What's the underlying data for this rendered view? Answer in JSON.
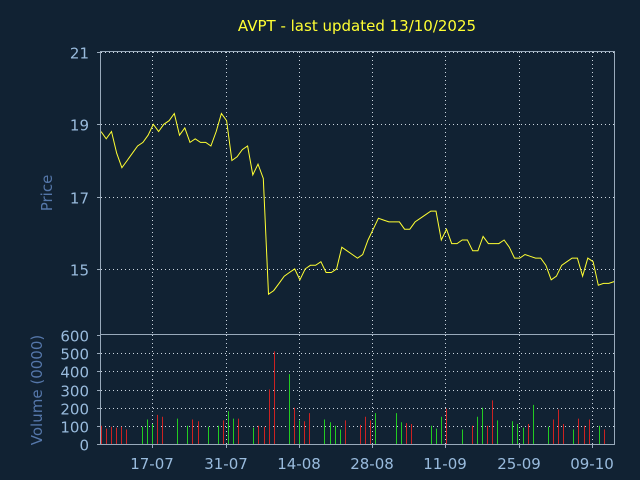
{
  "chart_data": {
    "type": "line",
    "title": "AVPT - last updated 13/10/2025",
    "colors": {
      "background": "#112233",
      "price_line": "#ffff33",
      "volume_up": "#22cc22",
      "volume_down": "#cc2222",
      "text": "#99bbdd",
      "axis_label": "#5577aa"
    },
    "price_panel": {
      "ylabel": "Price",
      "ylim": [
        13.2,
        21
      ],
      "yticks": [
        15,
        17,
        19,
        21
      ],
      "series": [
        {
          "values": [
            18.8,
            18.6,
            18.8,
            18.2,
            17.8,
            18.0,
            18.2,
            18.4,
            18.5,
            18.7,
            19.0,
            18.8,
            19.0,
            19.1,
            19.3,
            18.7,
            18.9,
            18.5,
            18.6,
            18.5,
            18.5,
            18.4,
            18.8,
            19.3,
            19.1,
            18.0,
            18.1,
            18.3,
            18.4,
            17.6,
            17.9,
            17.5,
            14.3,
            14.4,
            14.6,
            14.8,
            14.9,
            15.0,
            14.7,
            15.0,
            15.1,
            15.1,
            15.2,
            14.9,
            14.9,
            15.0,
            15.6,
            15.5,
            15.4,
            15.3,
            15.4,
            15.8,
            16.1,
            16.4,
            16.35,
            16.3,
            16.3,
            16.3,
            16.1,
            16.1,
            16.3,
            16.4,
            16.5,
            16.6,
            16.6,
            15.8,
            16.1,
            15.7,
            15.7,
            15.8,
            15.8,
            15.5,
            15.5,
            15.9,
            15.7,
            15.7,
            15.7,
            15.8,
            15.6,
            15.3,
            15.3,
            15.4,
            15.35,
            15.3,
            15.3,
            15.1,
            14.7,
            14.8,
            15.1,
            15.2,
            15.3,
            15.3,
            14.8,
            15.3,
            15.2,
            14.55,
            14.6,
            14.6,
            14.65
          ]
        }
      ]
    },
    "volume_panel": {
      "ylabel": "Volume (0000)",
      "ylim": [
        0,
        600
      ],
      "yticks": [
        0,
        100,
        200,
        300,
        400,
        500,
        600
      ],
      "values": [
        100,
        85,
        95,
        90,
        95,
        80,
        0,
        0,
        95,
        135,
        110,
        160,
        150,
        0,
        0,
        140,
        0,
        100,
        135,
        125,
        0,
        95,
        0,
        100,
        130,
        180,
        140,
        140,
        0,
        0,
        90,
        100,
        95,
        300,
        510,
        0,
        0,
        385,
        200,
        130,
        125,
        170,
        0,
        0,
        135,
        120,
        100,
        80,
        130,
        0,
        0,
        105,
        150,
        130,
        170,
        0,
        0,
        0,
        170,
        120,
        115,
        110,
        0,
        0,
        0,
        100,
        85,
        150,
        195,
        0,
        0,
        80,
        0,
        100,
        150,
        200,
        100,
        240,
        130,
        0,
        0,
        125,
        110,
        90,
        110,
        215,
        0,
        0,
        95,
        135,
        190,
        110,
        0,
        80,
        140,
        100,
        135,
        0,
        100,
        80,
        0,
        75
      ],
      "up": [
        false,
        false,
        false,
        false,
        false,
        false,
        false,
        false,
        true,
        true,
        true,
        false,
        false,
        false,
        false,
        true,
        false,
        true,
        false,
        false,
        false,
        true,
        false,
        true,
        false,
        true,
        true,
        false,
        false,
        false,
        true,
        false,
        false,
        false,
        false,
        false,
        false,
        true,
        false,
        true,
        false,
        false,
        false,
        false,
        true,
        true,
        true,
        true,
        false,
        false,
        false,
        false,
        false,
        false,
        true,
        false,
        false,
        false,
        true,
        true,
        false,
        false,
        false,
        false,
        false,
        true,
        true,
        true,
        false,
        false,
        false,
        true,
        false,
        false,
        true,
        true,
        false,
        false,
        true,
        false,
        false,
        true,
        true,
        true,
        false,
        true,
        false,
        false,
        true,
        false,
        false,
        false,
        false,
        true,
        false,
        false,
        false,
        false,
        true,
        false,
        false,
        false
      ]
    },
    "x_tick_labels": [
      "17-07",
      "31-07",
      "14-08",
      "28-08",
      "11-09",
      "25-09",
      "09-10"
    ]
  }
}
